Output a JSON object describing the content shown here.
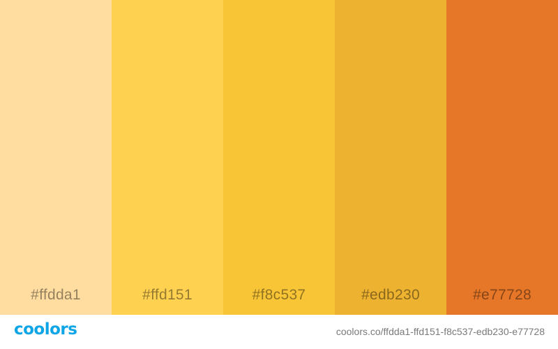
{
  "palette": {
    "swatches": [
      {
        "hex": "#ffdda1",
        "label": "#ffdda1"
      },
      {
        "hex": "#ffd151",
        "label": "#ffd151"
      },
      {
        "hex": "#f8c537",
        "label": "#f8c537"
      },
      {
        "hex": "#edb230",
        "label": "#edb230"
      },
      {
        "hex": "#e77728",
        "label": "#e77728"
      }
    ]
  },
  "footer": {
    "logo_text": "coolors",
    "logo_color": "#0ea5e6",
    "url": "coolors.co/ffdda1-ffd151-f8c537-edb230-e77728"
  }
}
